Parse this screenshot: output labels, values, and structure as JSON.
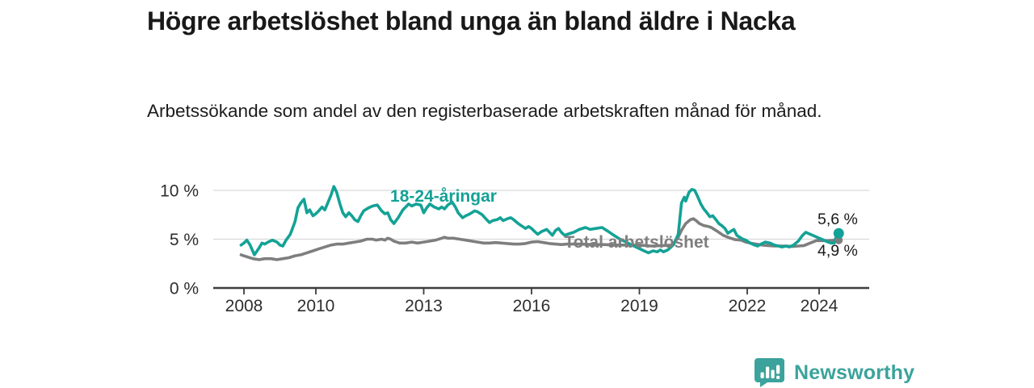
{
  "header": {
    "title": "Högre arbetslöshet bland unga än bland äldre i Nacka",
    "subtitle": "Arbetssökande som andel av den registerbaserade arbetskraften månad för månad."
  },
  "branding": {
    "name": "Newsworthy",
    "logo_icon": "bar-chart-speech-bubble",
    "color": "#3BA39B"
  },
  "colors": {
    "youth_series": "#14A296",
    "total_series": "#7E7E7E",
    "grid": "#D9D9D9",
    "axis": "#3D3D3D",
    "tick_text": "#2E2E2E",
    "annotation_text": "#1A1A1A",
    "background": "#FFFFFF"
  },
  "chart_data": {
    "type": "line",
    "title": "Högre arbetslöshet bland unga än bland äldre i Nacka",
    "subtitle": "Arbetssökande som andel av den registerbaserade arbetskraften månad för månad.",
    "unit": "%",
    "grid": "horizontal-only",
    "legend_position": "inline-labels-on-chart",
    "x_axis": {
      "range": [
        2007.8,
        2025.4
      ],
      "ticks": [
        {
          "year": 2008,
          "label": "2008"
        },
        {
          "year": 2010,
          "label": "2010"
        },
        {
          "year": 2013,
          "label": "2013"
        },
        {
          "year": 2016,
          "label": "2016"
        },
        {
          "year": 2019,
          "label": "2019"
        },
        {
          "year": 2022,
          "label": "2022"
        },
        {
          "year": 2024,
          "label": "2024"
        }
      ]
    },
    "y_axis": {
      "range": [
        0,
        10.8
      ],
      "ticks": [
        {
          "value": 0,
          "label": "0 %"
        },
        {
          "value": 5,
          "label": "5 %"
        },
        {
          "value": 10,
          "label": "10 %"
        }
      ]
    },
    "series": [
      {
        "name": "Total arbetslöshet",
        "color": "#7E7E7E",
        "end_value": 4.9,
        "end_label": "4,9 %",
        "points": [
          [
            2007.92,
            3.4
          ],
          [
            2008.08,
            3.2
          ],
          [
            2008.25,
            3.0
          ],
          [
            2008.42,
            2.9
          ],
          [
            2008.58,
            3.0
          ],
          [
            2008.75,
            3.0
          ],
          [
            2008.92,
            2.9
          ],
          [
            2009.08,
            3.0
          ],
          [
            2009.25,
            3.1
          ],
          [
            2009.42,
            3.3
          ],
          [
            2009.58,
            3.4
          ],
          [
            2009.75,
            3.6
          ],
          [
            2009.92,
            3.8
          ],
          [
            2010.08,
            4.0
          ],
          [
            2010.25,
            4.2
          ],
          [
            2010.42,
            4.4
          ],
          [
            2010.58,
            4.5
          ],
          [
            2010.75,
            4.5
          ],
          [
            2010.92,
            4.6
          ],
          [
            2011.08,
            4.7
          ],
          [
            2011.25,
            4.8
          ],
          [
            2011.42,
            5.0
          ],
          [
            2011.58,
            5.0
          ],
          [
            2011.67,
            4.9
          ],
          [
            2011.83,
            5.0
          ],
          [
            2011.92,
            4.9
          ],
          [
            2012.0,
            5.1
          ],
          [
            2012.08,
            5.0
          ],
          [
            2012.17,
            4.8
          ],
          [
            2012.33,
            4.6
          ],
          [
            2012.5,
            4.6
          ],
          [
            2012.67,
            4.7
          ],
          [
            2012.83,
            4.6
          ],
          [
            2013.0,
            4.7
          ],
          [
            2013.17,
            4.8
          ],
          [
            2013.33,
            4.9
          ],
          [
            2013.5,
            5.1
          ],
          [
            2013.58,
            5.2
          ],
          [
            2013.67,
            5.1
          ],
          [
            2013.83,
            5.1
          ],
          [
            2014.0,
            5.0
          ],
          [
            2014.17,
            4.9
          ],
          [
            2014.33,
            4.8
          ],
          [
            2014.5,
            4.7
          ],
          [
            2014.67,
            4.6
          ],
          [
            2014.83,
            4.6
          ],
          [
            2015.0,
            4.65
          ],
          [
            2015.17,
            4.6
          ],
          [
            2015.33,
            4.55
          ],
          [
            2015.5,
            4.5
          ],
          [
            2015.67,
            4.5
          ],
          [
            2015.83,
            4.55
          ],
          [
            2016.0,
            4.7
          ],
          [
            2016.17,
            4.75
          ],
          [
            2016.33,
            4.65
          ],
          [
            2016.5,
            4.55
          ],
          [
            2016.67,
            4.5
          ],
          [
            2016.83,
            4.45
          ],
          [
            2017.0,
            4.5
          ],
          [
            2017.33,
            4.5
          ],
          [
            2017.67,
            4.45
          ],
          [
            2018.0,
            4.45
          ],
          [
            2018.33,
            4.4
          ],
          [
            2018.67,
            4.4
          ],
          [
            2019.0,
            4.4
          ],
          [
            2019.33,
            4.3
          ],
          [
            2019.67,
            4.35
          ],
          [
            2019.92,
            4.4
          ],
          [
            2020.08,
            5.2
          ],
          [
            2020.17,
            5.9
          ],
          [
            2020.29,
            6.6
          ],
          [
            2020.42,
            7.0
          ],
          [
            2020.5,
            7.1
          ],
          [
            2020.58,
            6.9
          ],
          [
            2020.67,
            6.6
          ],
          [
            2020.79,
            6.4
          ],
          [
            2020.92,
            6.3
          ],
          [
            2021.0,
            6.2
          ],
          [
            2021.17,
            5.8
          ],
          [
            2021.25,
            5.6
          ],
          [
            2021.33,
            5.4
          ],
          [
            2021.46,
            5.2
          ],
          [
            2021.58,
            5.05
          ],
          [
            2021.67,
            4.95
          ],
          [
            2021.83,
            4.9
          ],
          [
            2021.96,
            4.7
          ],
          [
            2022.08,
            4.6
          ],
          [
            2022.25,
            4.5
          ],
          [
            2022.42,
            4.4
          ],
          [
            2022.58,
            4.35
          ],
          [
            2022.75,
            4.3
          ],
          [
            2022.92,
            4.3
          ],
          [
            2023.08,
            4.3
          ],
          [
            2023.25,
            4.25
          ],
          [
            2023.42,
            4.3
          ],
          [
            2023.58,
            4.35
          ],
          [
            2023.75,
            4.6
          ],
          [
            2023.92,
            4.85
          ],
          [
            2024.08,
            4.85
          ],
          [
            2024.25,
            4.85
          ],
          [
            2024.5,
            4.9
          ]
        ]
      },
      {
        "name": "18-24-åringar",
        "color": "#14A296",
        "end_value": 5.6,
        "end_label": "5,6 %",
        "points": [
          [
            2007.92,
            4.4
          ],
          [
            2008.0,
            4.6
          ],
          [
            2008.08,
            4.9
          ],
          [
            2008.17,
            4.4
          ],
          [
            2008.29,
            3.4
          ],
          [
            2008.42,
            4.1
          ],
          [
            2008.5,
            4.6
          ],
          [
            2008.58,
            4.5
          ],
          [
            2008.67,
            4.7
          ],
          [
            2008.79,
            4.9
          ],
          [
            2008.92,
            4.7
          ],
          [
            2009.0,
            4.4
          ],
          [
            2009.08,
            4.3
          ],
          [
            2009.17,
            4.9
          ],
          [
            2009.29,
            5.5
          ],
          [
            2009.42,
            6.8
          ],
          [
            2009.5,
            8.2
          ],
          [
            2009.58,
            8.7
          ],
          [
            2009.67,
            9.1
          ],
          [
            2009.75,
            7.7
          ],
          [
            2009.83,
            8.0
          ],
          [
            2009.92,
            7.4
          ],
          [
            2010.0,
            7.6
          ],
          [
            2010.08,
            7.9
          ],
          [
            2010.17,
            8.3
          ],
          [
            2010.25,
            8.0
          ],
          [
            2010.33,
            8.7
          ],
          [
            2010.42,
            9.5
          ],
          [
            2010.5,
            10.4
          ],
          [
            2010.58,
            9.8
          ],
          [
            2010.67,
            8.6
          ],
          [
            2010.75,
            7.7
          ],
          [
            2010.83,
            7.3
          ],
          [
            2010.92,
            7.7
          ],
          [
            2011.0,
            7.4
          ],
          [
            2011.08,
            7.0
          ],
          [
            2011.17,
            6.8
          ],
          [
            2011.25,
            7.4
          ],
          [
            2011.33,
            7.9
          ],
          [
            2011.46,
            8.2
          ],
          [
            2011.58,
            8.4
          ],
          [
            2011.71,
            8.5
          ],
          [
            2011.83,
            7.9
          ],
          [
            2011.92,
            7.6
          ],
          [
            2012.0,
            7.7
          ],
          [
            2012.08,
            7.0
          ],
          [
            2012.17,
            6.6
          ],
          [
            2012.29,
            7.2
          ],
          [
            2012.42,
            8.0
          ],
          [
            2012.5,
            8.3
          ],
          [
            2012.58,
            8.6
          ],
          [
            2012.67,
            8.4
          ],
          [
            2012.79,
            8.6
          ],
          [
            2012.92,
            8.5
          ],
          [
            2013.0,
            7.7
          ],
          [
            2013.08,
            8.2
          ],
          [
            2013.17,
            8.6
          ],
          [
            2013.29,
            8.3
          ],
          [
            2013.42,
            8.1
          ],
          [
            2013.5,
            8.3
          ],
          [
            2013.58,
            8.1
          ],
          [
            2013.67,
            8.5
          ],
          [
            2013.79,
            8.8
          ],
          [
            2013.88,
            8.3
          ],
          [
            2013.96,
            7.7
          ],
          [
            2014.08,
            7.2
          ],
          [
            2014.17,
            7.4
          ],
          [
            2014.29,
            7.6
          ],
          [
            2014.42,
            7.9
          ],
          [
            2014.5,
            7.8
          ],
          [
            2014.63,
            7.5
          ],
          [
            2014.75,
            7.0
          ],
          [
            2014.83,
            6.7
          ],
          [
            2014.92,
            6.9
          ],
          [
            2015.04,
            7.0
          ],
          [
            2015.13,
            7.2
          ],
          [
            2015.21,
            6.9
          ],
          [
            2015.33,
            7.1
          ],
          [
            2015.42,
            7.2
          ],
          [
            2015.5,
            7.0
          ],
          [
            2015.63,
            6.6
          ],
          [
            2015.75,
            6.3
          ],
          [
            2015.83,
            6.1
          ],
          [
            2015.92,
            6.3
          ],
          [
            2016.0,
            6.1
          ],
          [
            2016.08,
            5.8
          ],
          [
            2016.17,
            5.5
          ],
          [
            2016.29,
            5.8
          ],
          [
            2016.42,
            6.0
          ],
          [
            2016.5,
            5.7
          ],
          [
            2016.58,
            5.4
          ],
          [
            2016.67,
            5.9
          ],
          [
            2016.75,
            6.1
          ],
          [
            2016.83,
            5.7
          ],
          [
            2016.92,
            5.4
          ],
          [
            2017.0,
            5.5
          ],
          [
            2017.17,
            5.7
          ],
          [
            2017.33,
            6.0
          ],
          [
            2017.5,
            6.2
          ],
          [
            2017.63,
            6.0
          ],
          [
            2017.79,
            6.1
          ],
          [
            2017.96,
            6.2
          ],
          [
            2018.13,
            5.8
          ],
          [
            2018.29,
            5.4
          ],
          [
            2018.46,
            5.0
          ],
          [
            2018.63,
            4.7
          ],
          [
            2018.79,
            4.4
          ],
          [
            2018.96,
            4.1
          ],
          [
            2019.13,
            3.8
          ],
          [
            2019.25,
            3.6
          ],
          [
            2019.38,
            3.8
          ],
          [
            2019.5,
            3.7
          ],
          [
            2019.58,
            3.9
          ],
          [
            2019.67,
            3.7
          ],
          [
            2019.79,
            3.9
          ],
          [
            2019.88,
            4.2
          ],
          [
            2019.96,
            4.5
          ],
          [
            2020.08,
            5.5
          ],
          [
            2020.17,
            8.7
          ],
          [
            2020.25,
            9.3
          ],
          [
            2020.29,
            8.9
          ],
          [
            2020.38,
            9.8
          ],
          [
            2020.46,
            10.1
          ],
          [
            2020.54,
            10.0
          ],
          [
            2020.63,
            9.3
          ],
          [
            2020.71,
            8.6
          ],
          [
            2020.79,
            8.1
          ],
          [
            2020.88,
            7.7
          ],
          [
            2020.96,
            7.3
          ],
          [
            2021.04,
            7.4
          ],
          [
            2021.13,
            7.0
          ],
          [
            2021.21,
            6.6
          ],
          [
            2021.29,
            6.4
          ],
          [
            2021.38,
            6.1
          ],
          [
            2021.46,
            5.6
          ],
          [
            2021.54,
            5.8
          ],
          [
            2021.63,
            6.0
          ],
          [
            2021.71,
            5.4
          ],
          [
            2021.79,
            5.2
          ],
          [
            2021.88,
            5.0
          ],
          [
            2021.96,
            4.9
          ],
          [
            2022.08,
            4.6
          ],
          [
            2022.21,
            4.4
          ],
          [
            2022.29,
            4.3
          ],
          [
            2022.38,
            4.5
          ],
          [
            2022.5,
            4.7
          ],
          [
            2022.63,
            4.6
          ],
          [
            2022.75,
            4.4
          ],
          [
            2022.88,
            4.3
          ],
          [
            2022.96,
            4.2
          ],
          [
            2023.08,
            4.3
          ],
          [
            2023.17,
            4.2
          ],
          [
            2023.29,
            4.4
          ],
          [
            2023.42,
            4.8
          ],
          [
            2023.54,
            5.4
          ],
          [
            2023.63,
            5.7
          ],
          [
            2023.75,
            5.5
          ],
          [
            2023.88,
            5.3
          ],
          [
            2024.0,
            5.1
          ],
          [
            2024.13,
            4.9
          ],
          [
            2024.25,
            4.7
          ],
          [
            2024.33,
            4.6
          ],
          [
            2024.42,
            4.6
          ],
          [
            2024.5,
            5.6
          ]
        ]
      }
    ]
  }
}
